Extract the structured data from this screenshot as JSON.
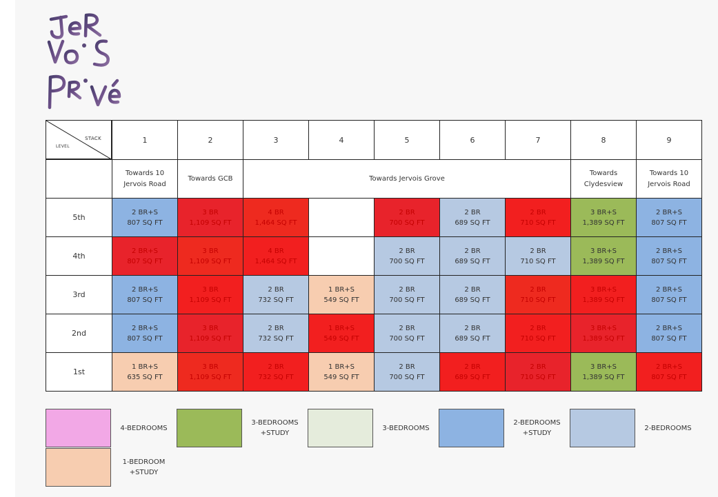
{
  "logo": {
    "lines": [
      "JeR",
      "VoiS",
      "PRivé"
    ]
  },
  "colors": {
    "four_br": "#f2a8e6",
    "three_br_study": "#9bba59",
    "three_br": "#e5ecdc",
    "two_br_study": "#8db3e2",
    "two_br": "#b6c9e2",
    "one_br_study": "#f7cdb0",
    "highlight_red": "#f21f1f"
  },
  "table": {
    "corner_stack": "STACK",
    "corner_level": "LEVEL",
    "stacks": [
      "1",
      "2",
      "3",
      "4",
      "5",
      "6",
      "7",
      "8",
      "9"
    ],
    "views": [
      {
        "label": "Towards 10\nJervois Road"
      },
      {
        "label": "Towards GCB"
      },
      {
        "label": "Towards Jervois Grove"
      },
      {
        "label": "Towards\nClydesview"
      },
      {
        "label": "Towards 10\nJervois Road"
      }
    ],
    "levels": [
      {
        "name": "5th",
        "units": [
          {
            "type": "2 BR+S",
            "area": "807 SQ FT",
            "color": "two_br_study",
            "red": false
          },
          {
            "type": "3 BR",
            "area": "1,109 SQ FT",
            "color": "red",
            "red": true
          },
          {
            "type": "4 BR",
            "area": "1,464 SQ FT",
            "color": "red",
            "red": true
          },
          {
            "type": "",
            "area": "",
            "color": "empty",
            "red": false
          },
          {
            "type": "2 BR",
            "area": "700 SQ FT",
            "color": "red",
            "red": true
          },
          {
            "type": "2 BR",
            "area": "689 SQ FT",
            "color": "two_br",
            "red": false
          },
          {
            "type": "2 BR",
            "area": "710 SQ FT",
            "color": "red",
            "red": true
          },
          {
            "type": "3 BR+S",
            "area": "1,389 SQ FT",
            "color": "three_br_study",
            "red": false
          },
          {
            "type": "2 BR+S",
            "area": "807 SQ FT",
            "color": "two_br_study",
            "red": false
          }
        ]
      },
      {
        "name": "4th",
        "units": [
          {
            "type": "2 BR+S",
            "area": "807 SQ FT",
            "color": "red",
            "red": true
          },
          {
            "type": "3 BR",
            "area": "1,109 SQ FT",
            "color": "red",
            "red": true
          },
          {
            "type": "4 BR",
            "area": "1,464 SQ FT",
            "color": "red",
            "red": true
          },
          {
            "type": "",
            "area": "",
            "color": "empty",
            "red": false
          },
          {
            "type": "2 BR",
            "area": "700 SQ FT",
            "color": "two_br",
            "red": false
          },
          {
            "type": "2 BR",
            "area": "689 SQ FT",
            "color": "two_br",
            "red": false
          },
          {
            "type": "2 BR",
            "area": "710 SQ FT",
            "color": "two_br",
            "red": false
          },
          {
            "type": "3 BR+S",
            "area": "1,389 SQ FT",
            "color": "three_br_study",
            "red": false
          },
          {
            "type": "2 BR+S",
            "area": "807 SQ FT",
            "color": "two_br_study",
            "red": false
          }
        ]
      },
      {
        "name": "3rd",
        "units": [
          {
            "type": "2 BR+S",
            "area": "807 SQ FT",
            "color": "two_br_study",
            "red": false
          },
          {
            "type": "3 BR",
            "area": "1,109 SQ FT",
            "color": "red",
            "red": true
          },
          {
            "type": "2 BR",
            "area": "732 SQ FT",
            "color": "two_br",
            "red": false
          },
          {
            "type": "1 BR+S",
            "area": "549 SQ FT",
            "color": "one_br_study",
            "red": false
          },
          {
            "type": "2 BR",
            "area": "700 SQ FT",
            "color": "two_br",
            "red": false
          },
          {
            "type": "2 BR",
            "area": "689 SQ FT",
            "color": "two_br",
            "red": false
          },
          {
            "type": "2 BR",
            "area": "710 SQ FT",
            "color": "red",
            "red": true
          },
          {
            "type": "3 BR+S",
            "area": "1,389 SQ FT",
            "color": "red",
            "red": true
          },
          {
            "type": "2 BR+S",
            "area": "807 SQ FT",
            "color": "two_br_study",
            "red": false
          }
        ]
      },
      {
        "name": "2nd",
        "units": [
          {
            "type": "2 BR+S",
            "area": "807 SQ FT",
            "color": "two_br_study",
            "red": false
          },
          {
            "type": "3 BR",
            "area": "1,109 SQ FT",
            "color": "red",
            "red": true
          },
          {
            "type": "2 BR",
            "area": "732 SQ FT",
            "color": "two_br",
            "red": false
          },
          {
            "type": "1 BR+S",
            "area": "549 SQ FT",
            "color": "red",
            "red": true
          },
          {
            "type": "2 BR",
            "area": "700 SQ FT",
            "color": "two_br",
            "red": false
          },
          {
            "type": "2 BR",
            "area": "689 SQ FT",
            "color": "two_br",
            "red": false
          },
          {
            "type": "2 BR",
            "area": "710 SQ FT",
            "color": "red",
            "red": true
          },
          {
            "type": "3 BR+S",
            "area": "1,389 SQ FT",
            "color": "red",
            "red": true
          },
          {
            "type": "2 BR+S",
            "area": "807 SQ FT",
            "color": "two_br_study",
            "red": false
          }
        ]
      },
      {
        "name": "1st",
        "units": [
          {
            "type": "1 BR+S",
            "area": "635 SQ FT",
            "color": "one_br_study",
            "red": false
          },
          {
            "type": "3 BR",
            "area": "1,109 SQ FT",
            "color": "red",
            "red": true
          },
          {
            "type": "2 BR",
            "area": "732 SQ FT",
            "color": "red",
            "red": true
          },
          {
            "type": "1 BR+S",
            "area": "549 SQ FT",
            "color": "one_br_study",
            "red": false
          },
          {
            "type": "2 BR",
            "area": "700 SQ FT",
            "color": "two_br",
            "red": false
          },
          {
            "type": "2 BR",
            "area": "689 SQ FT",
            "color": "red",
            "red": true
          },
          {
            "type": "2 BR",
            "area": "710 SQ FT",
            "color": "red",
            "red": true
          },
          {
            "type": "3 BR+S",
            "area": "1,389 SQ FT",
            "color": "three_br_study",
            "red": false
          },
          {
            "type": "2 BR+S",
            "area": "807 SQ FT",
            "color": "red",
            "red": true
          }
        ]
      }
    ]
  },
  "legend": [
    {
      "label": "4-BEDROOMS",
      "color": "four_br"
    },
    {
      "label": "3-BEDROOMS\n+STUDY",
      "color": "three_br_study"
    },
    {
      "label": "3-BEDROOMS",
      "color": "three_br"
    },
    {
      "label": "2-BEDROOMS\n+STUDY",
      "color": "two_br_study"
    },
    {
      "label": "2-BEDROOMS",
      "color": "two_br"
    },
    {
      "label": "1-BEDROOM\n+STUDY",
      "color": "one_br_study"
    }
  ]
}
